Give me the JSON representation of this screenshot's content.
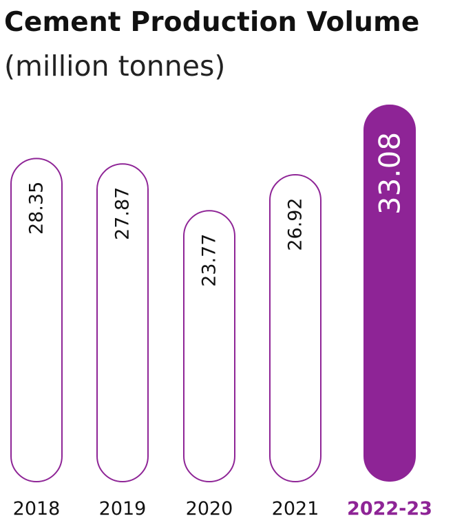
{
  "chart_data": {
    "type": "bar",
    "title": "Cement Production Volume",
    "subtitle": "(million tonnes)",
    "categories": [
      "2018",
      "2019",
      "2020",
      "2021",
      "2022-23"
    ],
    "values": [
      28.35,
      27.87,
      23.77,
      26.92,
      33.08
    ],
    "value_labels": [
      "28.35",
      "27.87",
      "23.77",
      "26.92",
      "33.08"
    ],
    "highlight_index": 4,
    "colors": {
      "accent": "#8e2496",
      "outline": "#8e2496",
      "label_text": "#111111",
      "highlight_label_text": "#ffffff"
    }
  }
}
